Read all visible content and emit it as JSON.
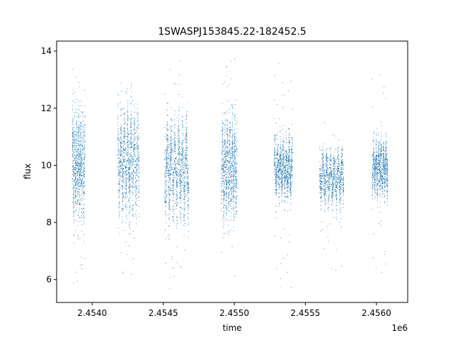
{
  "chart_data": {
    "type": "scatter",
    "title": "1SWASPJ153845.22-182452.5",
    "xlabel": "time",
    "ylabel": "flux",
    "x_offset_label": "1e6",
    "xlim": [
      2.45375,
      2.45622
    ],
    "ylim": [
      5.2,
      14.35
    ],
    "x_ticks": [
      2.454,
      2.4545,
      2.455,
      2.4555,
      2.456
    ],
    "x_tick_labels": [
      "2.4540",
      "2.4545",
      "2.4550",
      "2.4555",
      "2.4560"
    ],
    "y_ticks": [
      6,
      8,
      10,
      12,
      14
    ],
    "y_tick_labels": [
      "6",
      "8",
      "10",
      "12",
      "14"
    ],
    "grid": false,
    "legend": "none",
    "marker_color": "#1f77b4",
    "series": [
      {
        "segments": [
          {
            "x_start": 2.45386,
            "x_end": 2.45395,
            "y_center": 10.0,
            "y_spread": 1.6,
            "y_min": 5.8,
            "y_max": 13.7,
            "count": 900
          },
          {
            "x_start": 2.45418,
            "x_end": 2.45433,
            "y_center": 10.1,
            "y_spread": 1.5,
            "y_min": 5.7,
            "y_max": 13.3,
            "count": 1100
          },
          {
            "x_start": 2.45451,
            "x_end": 2.45468,
            "y_center": 9.9,
            "y_spread": 1.4,
            "y_min": 5.6,
            "y_max": 13.8,
            "count": 1200
          },
          {
            "x_start": 2.45491,
            "x_end": 2.45502,
            "y_center": 9.9,
            "y_spread": 1.5,
            "y_min": 6.0,
            "y_max": 14.0,
            "count": 1000
          },
          {
            "x_start": 2.45528,
            "x_end": 2.45541,
            "y_center": 9.9,
            "y_spread": 0.9,
            "y_min": 5.7,
            "y_max": 13.6,
            "count": 1000
          },
          {
            "x_start": 2.4556,
            "x_end": 2.45577,
            "y_center": 9.6,
            "y_spread": 0.8,
            "y_min": 6.3,
            "y_max": 11.5,
            "count": 1000
          },
          {
            "x_start": 2.45597,
            "x_end": 2.45608,
            "y_center": 9.9,
            "y_spread": 0.8,
            "y_min": 6.2,
            "y_max": 13.4,
            "count": 900
          }
        ]
      }
    ]
  }
}
